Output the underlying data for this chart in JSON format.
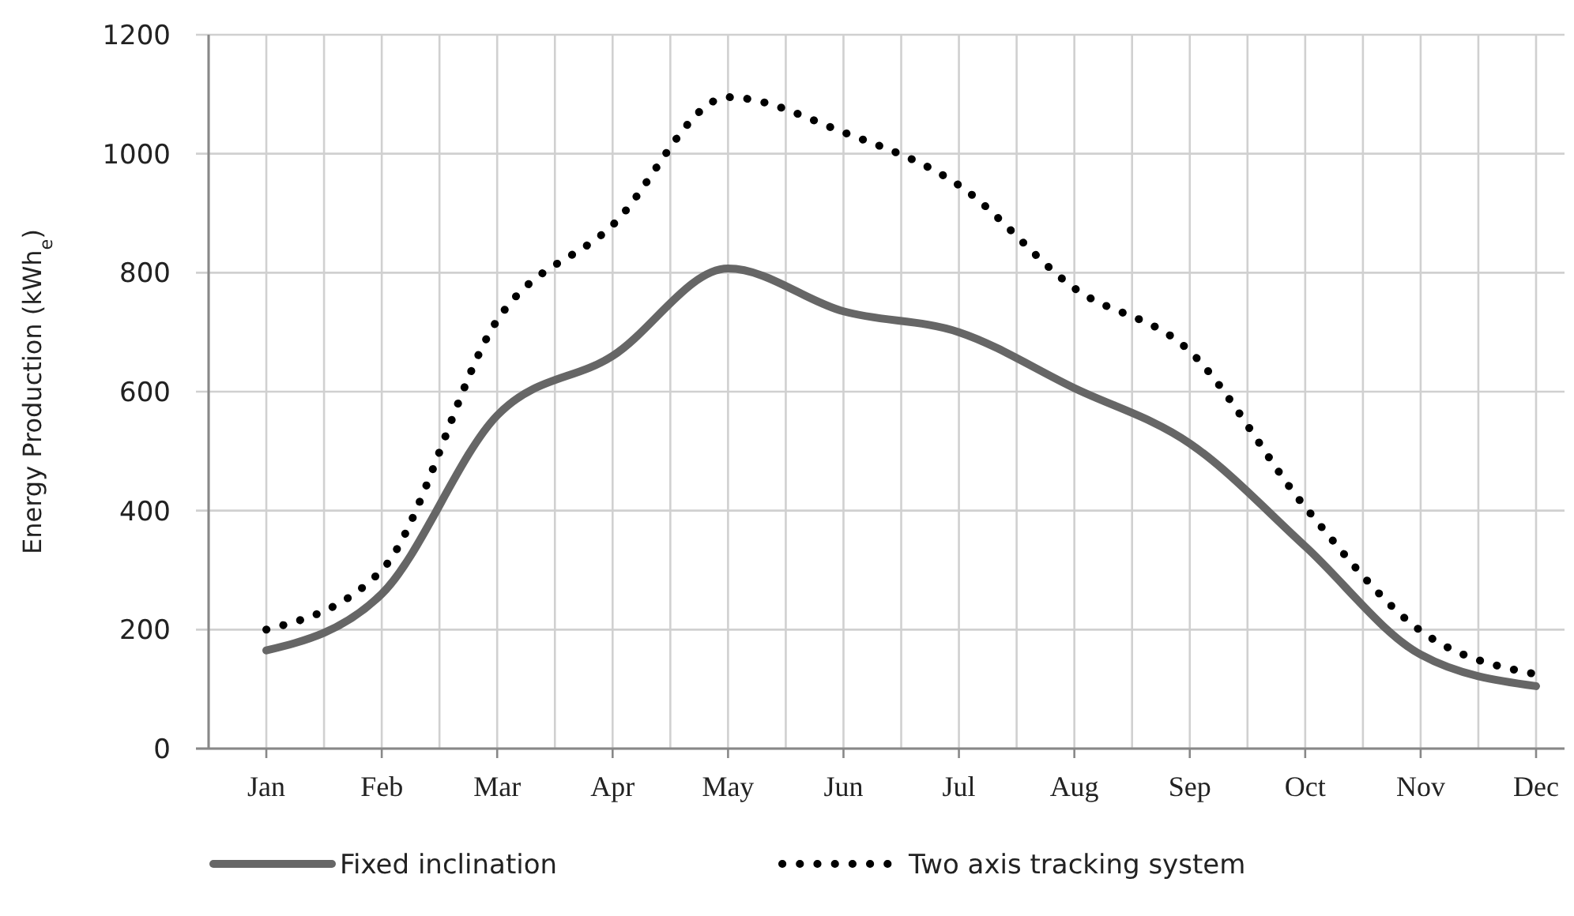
{
  "chart_data": {
    "type": "line",
    "ylabel": "Energy Production (kWh$_{e}$)",
    "categories": [
      "Jan",
      "Feb",
      "Mar",
      "Apr",
      "May",
      "Jun",
      "Jul",
      "Aug",
      "Sep",
      "Oct",
      "Nov",
      "Dec"
    ],
    "series": [
      {
        "name": "Fixed inclination",
        "color": "#666666",
        "line_style": "solid",
        "values": [
          165,
          260,
          560,
          660,
          807,
          735,
          700,
          606,
          513,
          340,
          158,
          105
        ]
      },
      {
        "name": "Two axis tracking system",
        "color": "#000000",
        "line_style": "dotted",
        "values": [
          200,
          300,
          720,
          880,
          1095,
          1036,
          947,
          774,
          668,
          406,
          198,
          125
        ]
      }
    ],
    "ylim": [
      0,
      1200
    ],
    "yticks": [
      0,
      200,
      400,
      600,
      800,
      1000,
      1200
    ],
    "grid": true,
    "legend": "bottom",
    "marker": "none"
  }
}
